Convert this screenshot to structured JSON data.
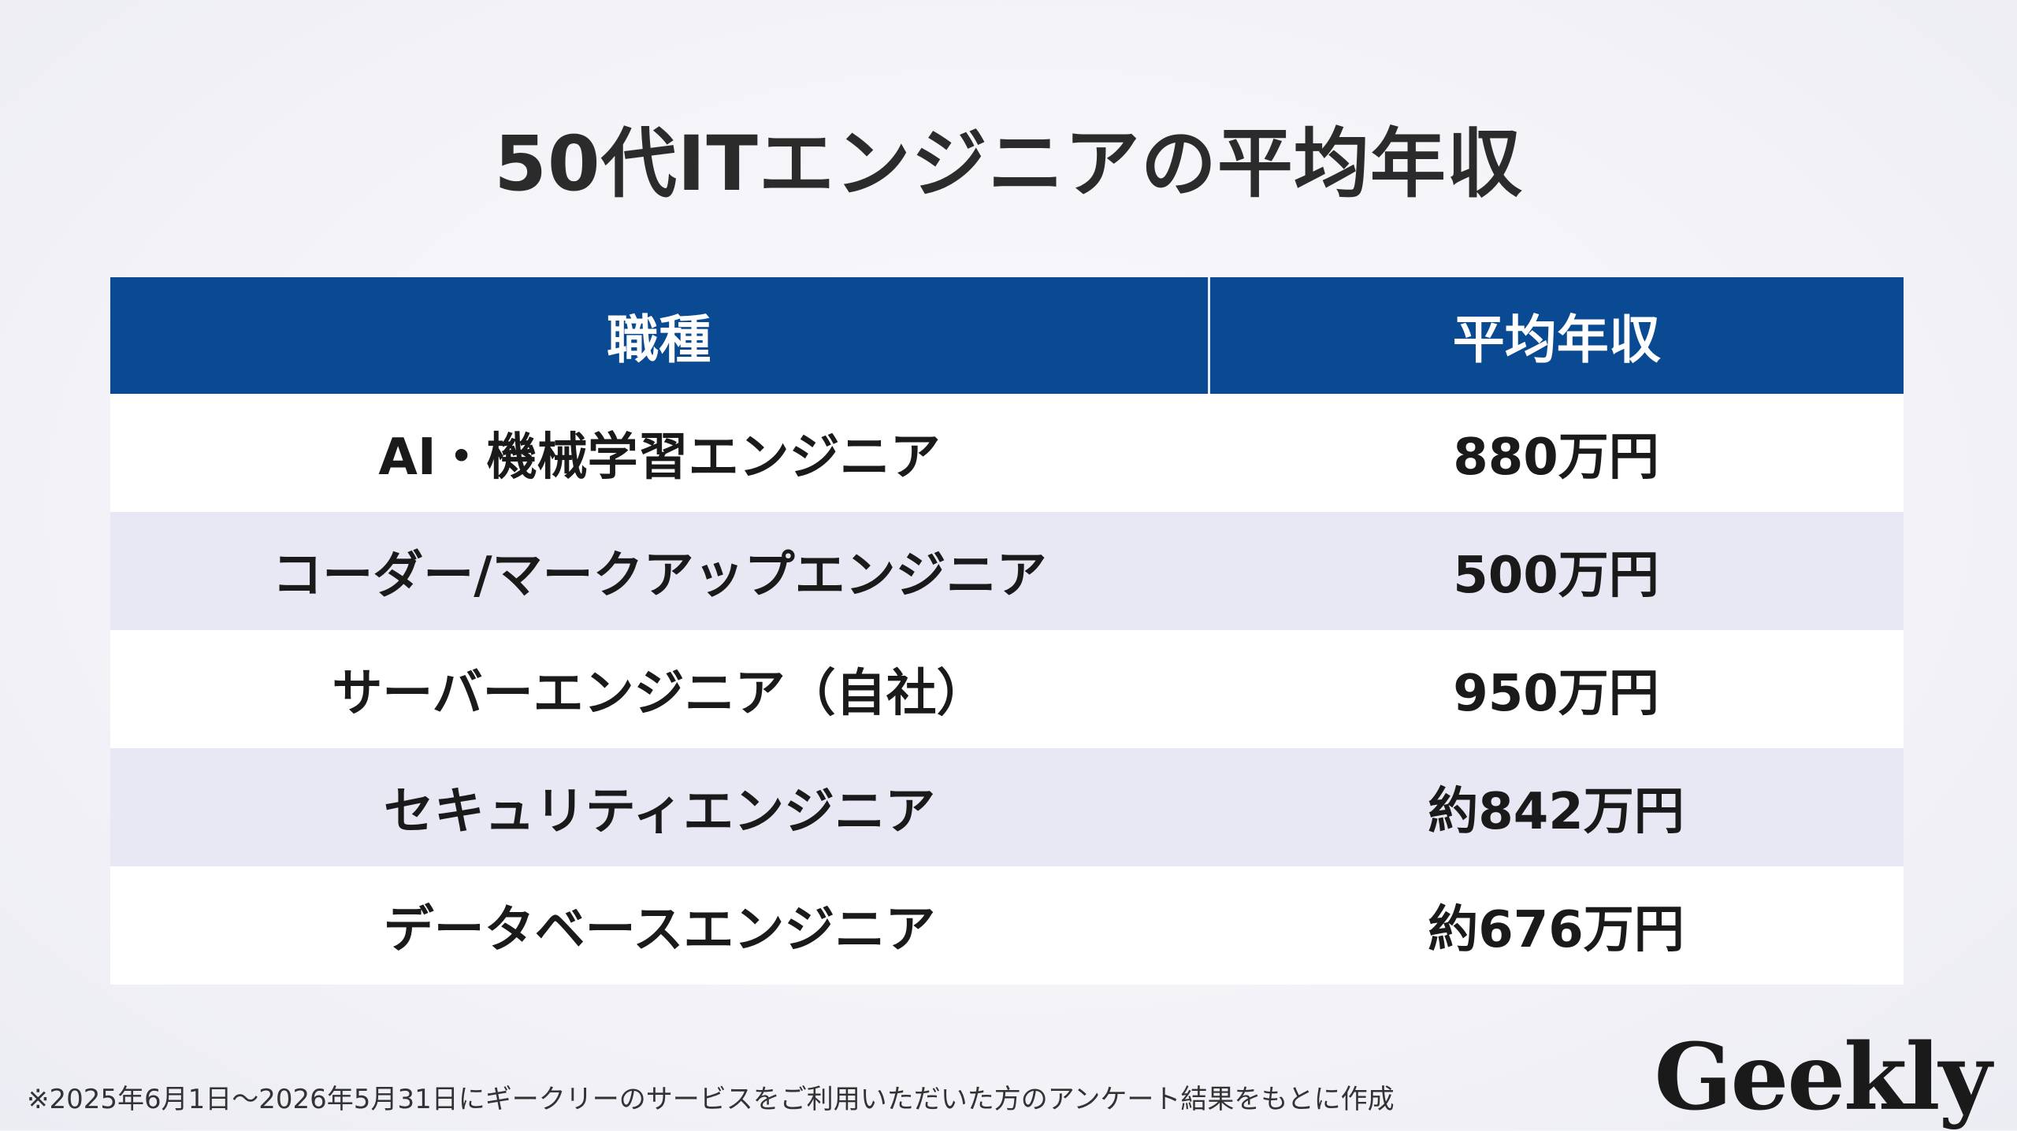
{
  "title": "50代ITエンジニアの平均年収",
  "table": {
    "headers": [
      "職種",
      "平均年収"
    ],
    "rows": [
      {
        "job": "AI・機械学習エンジニア",
        "salary": "880万円"
      },
      {
        "job": "コーダー/マークアップエンジニア",
        "salary": "500万円"
      },
      {
        "job": "サーバーエンジニア（自社）",
        "salary": "950万円"
      },
      {
        "job": "セキュリティエンジニア",
        "salary": "約842万円"
      },
      {
        "job": "データベースエンジニア",
        "salary": "約676万円"
      }
    ]
  },
  "footnote": "※2025年6月1日～2026年5月31日にギークリーのサービスをご利用いただいた方のアンケート結果をもとに作成",
  "logo": "Geekly",
  "colors": {
    "header_bg": "#0a4a93",
    "header_text": "#ffffff",
    "row_alt": "#e7e8f3",
    "row_plain": "#ffffff",
    "background": "#f3f3f8"
  }
}
